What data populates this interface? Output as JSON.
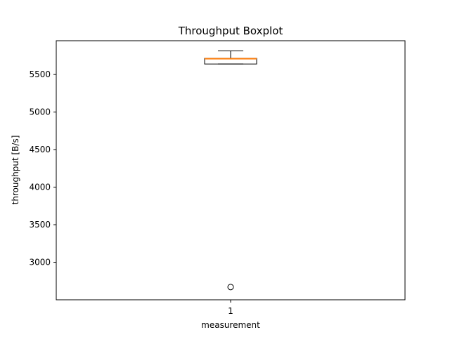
{
  "chart_data": {
    "type": "boxplot",
    "title": "Throughput Boxplot",
    "xlabel": "measurement",
    "ylabel": "throughput [B/s]",
    "categories": [
      "1"
    ],
    "ylim": [
      2500,
      5950
    ],
    "yticks": [
      3000,
      3500,
      4000,
      4500,
      5000,
      5500
    ],
    "ytick_labels": [
      "3000",
      "3500",
      "4000",
      "4500",
      "5000",
      "5500"
    ],
    "boxes": [
      {
        "label": "1",
        "whisker_low": 5640,
        "q1": 5640,
        "median": 5710,
        "q3": 5715,
        "whisker_high": 5815,
        "outliers": [
          2670
        ]
      }
    ],
    "grid": false,
    "colors": {
      "median": "#ff7f0e",
      "box": "#000000",
      "background": "#ffffff"
    }
  }
}
